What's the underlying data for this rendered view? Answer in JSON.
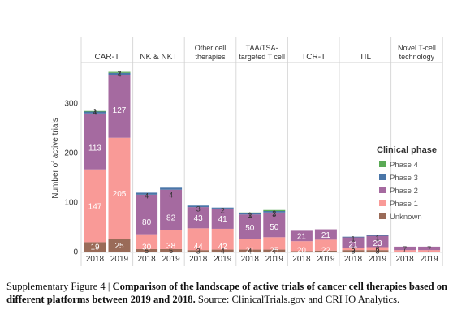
{
  "caption": {
    "label": "Supplementary Figure 4 |",
    "bold": "Comparison of the landscape of active trials of cancer cell therapies based on different platforms between 2019 and 2018.",
    "source": "Source: ClinicalTrials.gov and CRI IO Analytics."
  },
  "colors": {
    "Unknown": "#9a6b58",
    "Phase 1": "#f99a97",
    "Phase 2": "#a56aa0",
    "Phase 3": "#4a76a8",
    "Phase 4": "#5aaa55"
  },
  "chart_data": {
    "type": "bar",
    "stacked": true,
    "ylabel": "Number of active trials",
    "ylim": [
      0,
      370
    ],
    "yticks": [
      0,
      100,
      200,
      300
    ],
    "grid": false,
    "legend": {
      "title": "Clinical phase",
      "position": "right",
      "entries": [
        "Phase 4",
        "Phase 3",
        "Phase 2",
        "Phase 1",
        "Unknown"
      ]
    },
    "stack_order": [
      "Unknown",
      "Phase 1",
      "Phase 2",
      "Phase 3",
      "Phase 4"
    ],
    "platforms": [
      {
        "name": [
          "CAR-T"
        ],
        "bars": [
          {
            "year": "2018",
            "values": {
              "Unknown": 19,
              "Phase 1": 147,
              "Phase 2": 113,
              "Phase 3": 4,
              "Phase 4": 1
            },
            "labels": [
              {
                "text": "19",
                "at": 9.5
              },
              {
                "text": "147",
                "at": 92
              },
              {
                "text": "113",
                "at": 210
              },
              {
                "text": "4",
                "at": 282
              },
              {
                "text": "1",
                "at": 283.5
              }
            ]
          },
          {
            "year": "2019",
            "values": {
              "Unknown": 25,
              "Phase 1": 205,
              "Phase 2": 127,
              "Phase 3": 4,
              "Phase 4": 2
            },
            "labels": [
              {
                "text": "25",
                "at": 12.5
              },
              {
                "text": "205",
                "at": 117
              },
              {
                "text": "127",
                "at": 286
              },
              {
                "text": "4",
                "at": 359
              },
              {
                "text": "2",
                "at": 361
              }
            ]
          }
        ]
      },
      {
        "name": [
          "NK & NKT"
        ],
        "bars": [
          {
            "year": "2018",
            "values": {
              "Unknown": 5,
              "Phase 1": 30,
              "Phase 2": 80,
              "Phase 3": 4,
              "Phase 4": 0
            },
            "labels": [
              {
                "text": "5",
                "at": 2.5
              },
              {
                "text": "30",
                "at": 10
              },
              {
                "text": "80",
                "at": 60
              },
              {
                "text": "4",
                "at": 113
              }
            ]
          },
          {
            "year": "2019",
            "values": {
              "Unknown": 5,
              "Phase 1": 38,
              "Phase 2": 82,
              "Phase 3": 4,
              "Phase 4": 0
            },
            "labels": [
              {
                "text": "5",
                "at": 2.5
              },
              {
                "text": "38",
                "at": 12
              },
              {
                "text": "82",
                "at": 69
              },
              {
                "text": "4",
                "at": 115
              }
            ]
          }
        ]
      },
      {
        "name": [
          "Other cell",
          "therapies"
        ],
        "bars": [
          {
            "year": "2018",
            "values": {
              "Unknown": 3,
              "Phase 1": 44,
              "Phase 2": 43,
              "Phase 3": 3,
              "Phase 4": 0
            },
            "labels": [
              {
                "text": "44",
                "at": 11
              },
              {
                "text": "3",
                "at": 2
              },
              {
                "text": "43",
                "at": 68
              },
              {
                "text": "3",
                "at": 87
              }
            ]
          },
          {
            "year": "2019",
            "values": {
              "Unknown": 4,
              "Phase 1": 42,
              "Phase 2": 41,
              "Phase 3": 2,
              "Phase 4": 0
            },
            "labels": [
              {
                "text": "42",
                "at": 11
              },
              {
                "text": "4",
                "at": 2
              },
              {
                "text": "41",
                "at": 66
              },
              {
                "text": "2",
                "at": 84
              }
            ]
          }
        ]
      },
      {
        "name": [
          "TAA/TSA-",
          "targeted T cell"
        ],
        "bars": [
          {
            "year": "2018",
            "values": {
              "Unknown": 4,
              "Phase 1": 21,
              "Phase 2": 50,
              "Phase 3": 3,
              "Phase 4": 1
            },
            "labels": [
              {
                "text": "4",
                "at": 2
              },
              {
                "text": "21",
                "at": 3
              },
              {
                "text": "50",
                "at": 48
              },
              {
                "text": "3",
                "at": 73
              },
              {
                "text": "1",
                "at": 75
              }
            ]
          },
          {
            "year": "2019",
            "values": {
              "Unknown": 4,
              "Phase 1": 25,
              "Phase 2": 50,
              "Phase 3": 3,
              "Phase 4": 2
            },
            "labels": [
              {
                "text": "4",
                "at": 2
              },
              {
                "text": "25",
                "at": 3
              },
              {
                "text": "50",
                "at": 50
              },
              {
                "text": "3",
                "at": 76
              },
              {
                "text": "2",
                "at": 78
              }
            ]
          }
        ]
      },
      {
        "name": [
          "TCR-T"
        ],
        "bars": [
          {
            "year": "2018",
            "values": {
              "Unknown": 1,
              "Phase 1": 20,
              "Phase 2": 21,
              "Phase 3": 0,
              "Phase 4": 0
            },
            "labels": [
              {
                "text": "20",
                "at": 3
              },
              {
                "text": "21",
                "at": 31
              }
            ]
          },
          {
            "year": "2019",
            "values": {
              "Unknown": 2,
              "Phase 1": 22,
              "Phase 2": 21,
              "Phase 3": 0,
              "Phase 4": 0
            },
            "labels": [
              {
                "text": "22",
                "at": 3
              },
              {
                "text": "21",
                "at": 34
              }
            ]
          }
        ]
      },
      {
        "name": [
          "TIL"
        ],
        "bars": [
          {
            "year": "2018",
            "values": {
              "Unknown": 3,
              "Phase 1": 5,
              "Phase 2": 21,
              "Phase 3": 1,
              "Phase 4": 0
            },
            "labels": [
              {
                "text": "3",
                "at": 1.5
              },
              {
                "text": "5",
                "at": 5.5
              },
              {
                "text": "21",
                "at": 15
              },
              {
                "text": "1",
                "at": 26
              }
            ]
          },
          {
            "year": "2019",
            "values": {
              "Unknown": 3,
              "Phase 1": 6,
              "Phase 2": 23,
              "Phase 3": 1,
              "Phase 4": 0
            },
            "labels": [
              {
                "text": "3",
                "at": 1.5
              },
              {
                "text": "6",
                "at": 6
              },
              {
                "text": "23",
                "at": 17
              },
              {
                "text": "1",
                "at": 28
              }
            ]
          }
        ]
      },
      {
        "name": [
          "Novel T-cell",
          "technology"
        ],
        "bars": [
          {
            "year": "2018",
            "values": {
              "Unknown": 0,
              "Phase 1": 3,
              "Phase 2": 7,
              "Phase 3": 0,
              "Phase 4": 0
            },
            "labels": [
              {
                "text": "7",
                "at": 6
              }
            ]
          },
          {
            "year": "2019",
            "values": {
              "Unknown": 0,
              "Phase 1": 3,
              "Phase 2": 7,
              "Phase 3": 0,
              "Phase 4": 0
            },
            "labels": [
              {
                "text": "7",
                "at": 6
              }
            ]
          }
        ]
      }
    ]
  }
}
